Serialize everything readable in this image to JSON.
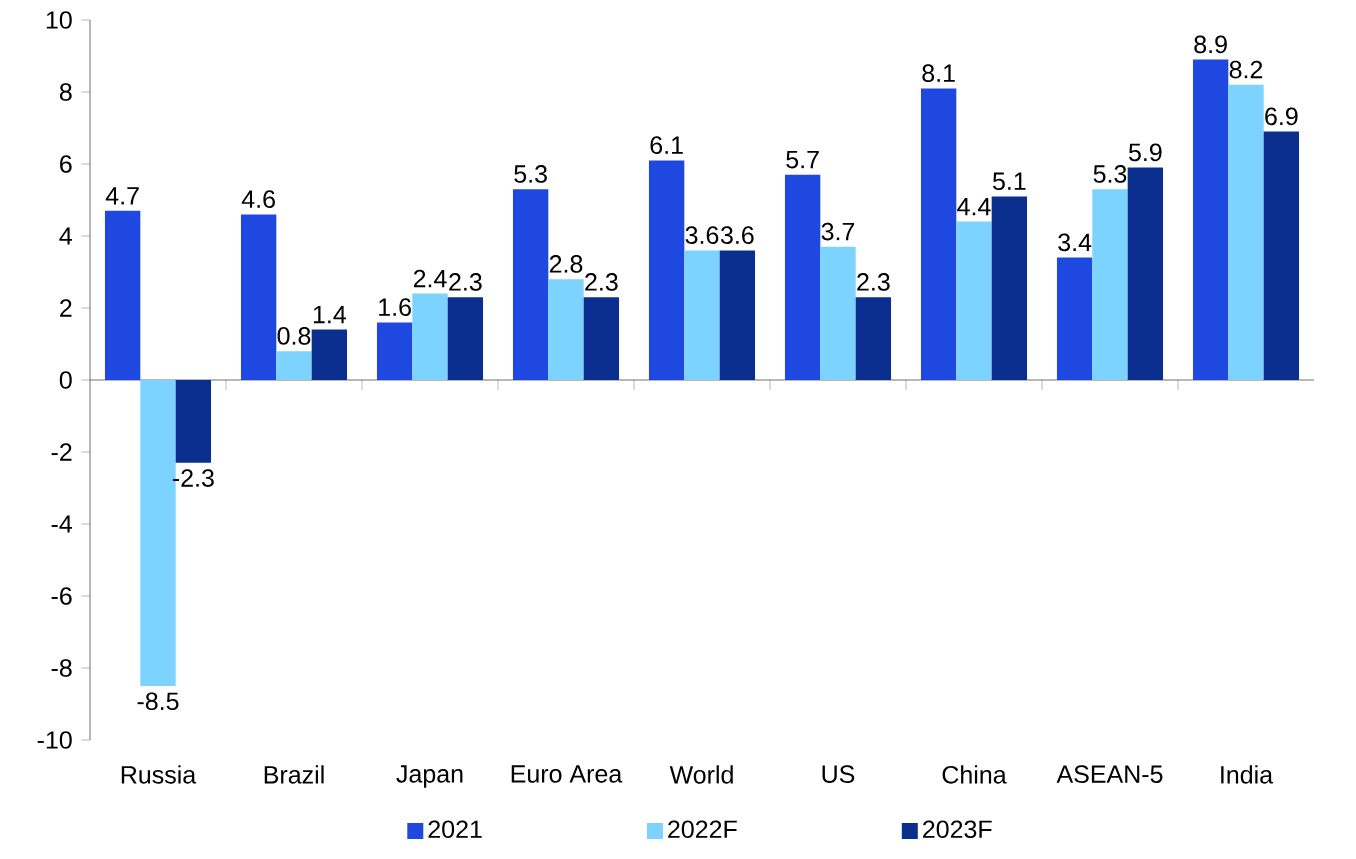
{
  "chart_data": {
    "type": "bar",
    "categories": [
      "Russia",
      "Brazil",
      "Japan",
      "Euro Area",
      "World",
      "US",
      "China",
      "ASEAN-5",
      "India"
    ],
    "series": [
      {
        "name": "2021",
        "color": "#1f48e0",
        "values": [
          4.7,
          4.6,
          1.6,
          5.3,
          6.1,
          5.7,
          8.1,
          3.4,
          8.9
        ]
      },
      {
        "name": "2022F",
        "color": "#7dd3ff",
        "values": [
          -8.5,
          0.8,
          2.4,
          2.8,
          3.6,
          3.7,
          4.4,
          5.3,
          8.2
        ]
      },
      {
        "name": "2023F",
        "color": "#0a2f8e",
        "values": [
          -2.3,
          1.4,
          2.3,
          2.3,
          3.6,
          2.3,
          5.1,
          5.9,
          6.9
        ]
      }
    ],
    "ylim": [
      -10,
      10
    ],
    "yticks": [
      -10,
      -8,
      -6,
      -4,
      -2,
      0,
      2,
      4,
      6,
      8,
      10
    ],
    "data_labels": true,
    "legend": "bottom"
  }
}
